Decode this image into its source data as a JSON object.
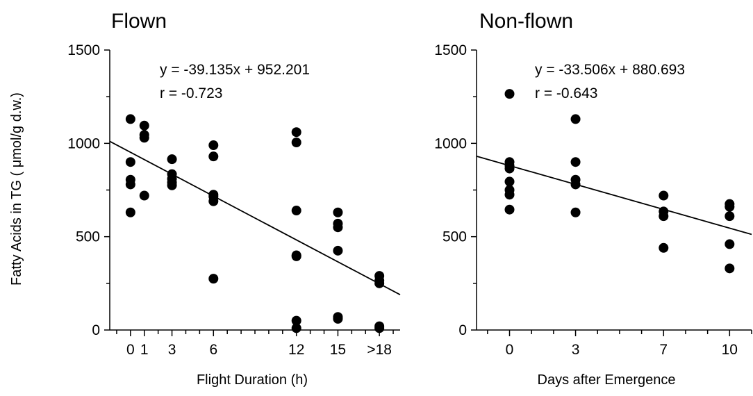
{
  "chart_data": [
    {
      "type": "scatter",
      "title": "Flown",
      "xlabel": "Flight Duration (h)",
      "ylabel": "Fatty Acids in TG ( μmol/g d.w.)",
      "ylim": [
        0,
        1500
      ],
      "yticks": [
        "0",
        "500",
        "1000",
        "1500"
      ],
      "xlim": [
        -1.5,
        19.5
      ],
      "xticks": [
        {
          "value": 0,
          "label": "0"
        },
        {
          "value": 1,
          "label": "1"
        },
        {
          "value": 3,
          "label": "3"
        },
        {
          "value": 6,
          "label": "6"
        },
        {
          "value": 12,
          "label": "12"
        },
        {
          "value": 15,
          "label": "15"
        },
        {
          "value": 18,
          "label": ">18"
        }
      ],
      "equation": "y =  -39.135x + 952.201",
      "r_text": "r = -0.723",
      "fit": {
        "slope": -39.135,
        "intercept": 952.201,
        "x_range": [
          -1.5,
          19.5
        ]
      },
      "points": [
        [
          0,
          1130
        ],
        [
          0,
          900
        ],
        [
          0,
          805
        ],
        [
          0,
          780
        ],
        [
          0,
          630
        ],
        [
          1,
          1095
        ],
        [
          1,
          1045
        ],
        [
          1,
          1030
        ],
        [
          1,
          720
        ],
        [
          3,
          915
        ],
        [
          3,
          835
        ],
        [
          3,
          810
        ],
        [
          3,
          790
        ],
        [
          3,
          775
        ],
        [
          6,
          990
        ],
        [
          6,
          930
        ],
        [
          6,
          725
        ],
        [
          6,
          715
        ],
        [
          6,
          690
        ],
        [
          6,
          275
        ],
        [
          12,
          1060
        ],
        [
          12,
          1005
        ],
        [
          12,
          640
        ],
        [
          12,
          400
        ],
        [
          12,
          395
        ],
        [
          12,
          50
        ],
        [
          12,
          10
        ],
        [
          15,
          630
        ],
        [
          15,
          570
        ],
        [
          15,
          550
        ],
        [
          15,
          425
        ],
        [
          15,
          70
        ],
        [
          15,
          60
        ],
        [
          18,
          290
        ],
        [
          18,
          265
        ],
        [
          18,
          250
        ],
        [
          18,
          20
        ],
        [
          18,
          10
        ]
      ]
    },
    {
      "type": "scatter",
      "title": "Non-flown",
      "xlabel": "Days after Emergence",
      "ylabel": "",
      "ylim": [
        0,
        1500
      ],
      "yticks": [
        "0",
        "500",
        "1000",
        "1500"
      ],
      "xlim": [
        -1.5,
        11
      ],
      "xticks": [
        {
          "value": 0,
          "label": "0"
        },
        {
          "value": 3,
          "label": "3"
        },
        {
          "value": 7,
          "label": "7"
        },
        {
          "value": 10,
          "label": "10"
        }
      ],
      "equation": "y =  -33.506x + 880.693",
      "r_text": "r = -0.643",
      "fit": {
        "slope": -33.506,
        "intercept": 880.693,
        "x_range": [
          -1.5,
          11
        ]
      },
      "points": [
        [
          0,
          1265
        ],
        [
          0,
          900
        ],
        [
          0,
          880
        ],
        [
          0,
          865
        ],
        [
          0,
          795
        ],
        [
          0,
          750
        ],
        [
          0,
          725
        ],
        [
          0,
          645
        ],
        [
          3,
          1130
        ],
        [
          3,
          900
        ],
        [
          3,
          805
        ],
        [
          3,
          780
        ],
        [
          3,
          630
        ],
        [
          7,
          720
        ],
        [
          7,
          635
        ],
        [
          7,
          610
        ],
        [
          7,
          440
        ],
        [
          10,
          675
        ],
        [
          10,
          660
        ],
        [
          10,
          610
        ],
        [
          10,
          460
        ],
        [
          10,
          330
        ]
      ]
    }
  ]
}
